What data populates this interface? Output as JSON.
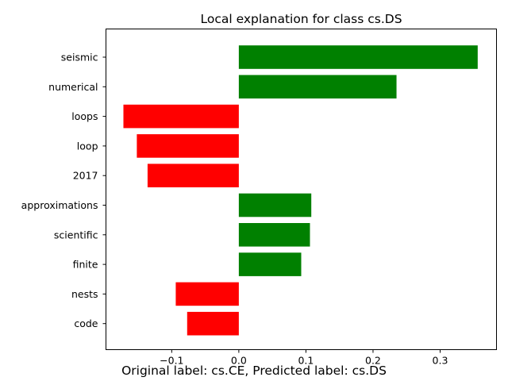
{
  "chart_data": {
    "type": "bar",
    "orientation": "horizontal",
    "title": "Local explanation for class cs.DS",
    "xlabel": "",
    "ylabel": "",
    "categories": [
      "seismic",
      "numerical",
      "loops",
      "loop",
      "2017",
      "approximations",
      "scientific",
      "finite",
      "nests",
      "code"
    ],
    "values": [
      0.356,
      0.235,
      -0.172,
      -0.152,
      -0.136,
      0.108,
      0.106,
      0.093,
      -0.094,
      -0.077
    ],
    "xlim": [
      -0.198,
      0.384
    ],
    "xticks": [
      -0.1,
      0.0,
      0.1,
      0.2,
      0.3
    ],
    "xtick_labels": [
      "−0.1",
      "0.0",
      "0.1",
      "0.2",
      "0.3"
    ],
    "positive_color": "#008000",
    "negative_color": "#ff0000",
    "grid": false,
    "caption": "Original label: cs.CE, Predicted label: cs.DS"
  }
}
